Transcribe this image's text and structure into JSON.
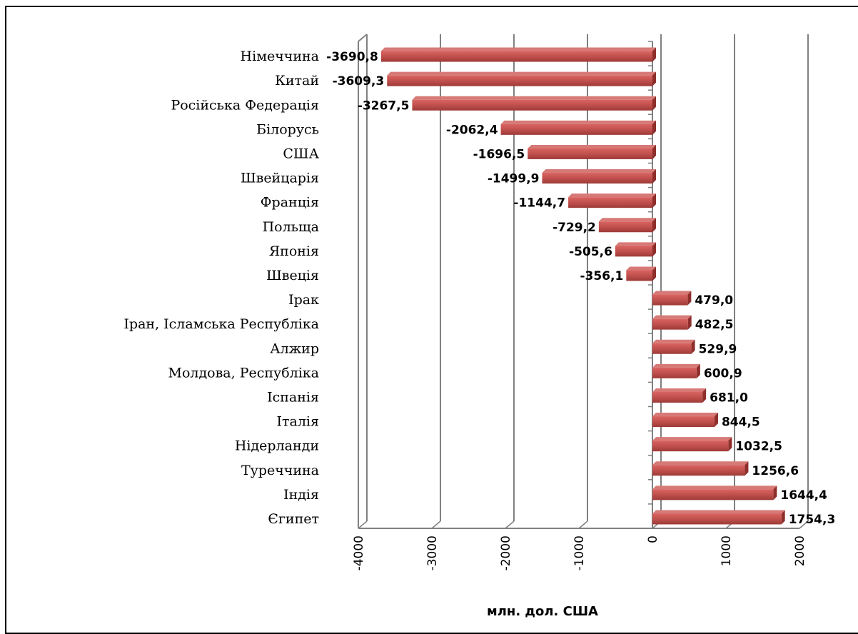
{
  "chart_data": {
    "type": "bar",
    "orientation": "horizontal",
    "categories": [
      "Німеччина",
      "Китай",
      "Російська Федерація",
      "Білорусь",
      "США",
      "Швейцарія",
      "Франція",
      "Польща",
      "Японія",
      "Швеція",
      "Ірак",
      "Іран, Ісламська Республіка",
      "Алжир",
      "Молдова, Республіка",
      "Іспанія",
      "Італія",
      "Нідерланди",
      "Туреччина",
      "Індія",
      "Єгипет"
    ],
    "values": [
      -3690.8,
      -3609.3,
      -3267.5,
      -2062.4,
      -1696.5,
      -1499.9,
      -1144.7,
      -729.2,
      -505.6,
      -356.1,
      479.0,
      482.5,
      529.9,
      600.9,
      681.0,
      844.5,
      1032.5,
      1256.6,
      1644.4,
      1754.3
    ],
    "value_labels": [
      "-3690,8",
      "-3609,3",
      "-3267,5",
      "-2062,4",
      "-1696,5",
      "-1499,9",
      "-1144,7",
      "-729,2",
      "-505,6",
      "-356,1",
      "479,0",
      "482,5",
      "529,9",
      "600,9",
      "681,0",
      "844,5",
      "1032,5",
      "1256,6",
      "1644,4",
      "1754,3"
    ],
    "xlim": [
      -4000,
      2000
    ],
    "xticks": [
      -4000,
      -3000,
      -2000,
      -1000,
      0,
      1000,
      2000
    ],
    "xtick_labels": [
      "-4000",
      "-3000",
      "-2000",
      "-1000",
      "0",
      "1000",
      "2000"
    ],
    "xlabel": "млн. дол. США",
    "grid": true,
    "bar_color": "#c0504d"
  }
}
